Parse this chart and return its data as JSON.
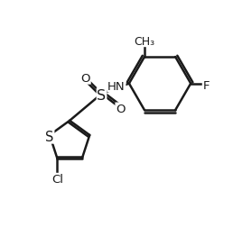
{
  "background_color": "#ffffff",
  "line_color": "#1a1a1a",
  "line_width": 1.8,
  "font_size": 9.5,
  "figsize": [
    2.58,
    2.53
  ],
  "dpi": 100,
  "xlim": [
    0,
    10
  ],
  "ylim": [
    0,
    10
  ]
}
